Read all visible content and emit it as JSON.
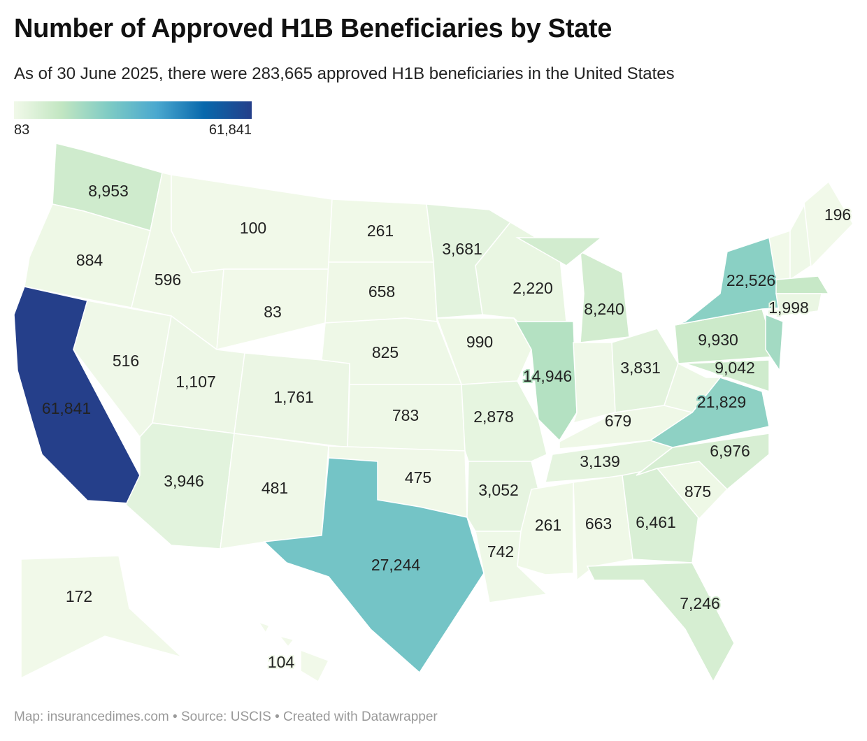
{
  "title": "Number of Approved H1B Beneficiaries by State",
  "subtitle": "As of 30 June 2025, there were 283,665 approved H1B beneficiaries in the United States",
  "legend": {
    "min_label": "83",
    "max_label": "61,841",
    "min": 83,
    "max": 61841,
    "colors": [
      "#f1f9e9",
      "#c2e6c2",
      "#7ecbc4",
      "#4aa8cf",
      "#0868ac",
      "#253f8a"
    ]
  },
  "footer": "Map: insurancedimes.com • Source: USCIS • Created with Datawrapper",
  "chart_data": {
    "type": "choropleth",
    "regions": [
      {
        "state": "WA",
        "value": 8953,
        "label": "8,953"
      },
      {
        "state": "OR",
        "value": 884,
        "label": "884"
      },
      {
        "state": "CA",
        "value": 61841,
        "label": "61,841"
      },
      {
        "state": "NV",
        "value": 516,
        "label": "516"
      },
      {
        "state": "ID",
        "value": 596,
        "label": "596"
      },
      {
        "state": "MT",
        "value": 100,
        "label": "100"
      },
      {
        "state": "WY",
        "value": 83,
        "label": "83"
      },
      {
        "state": "UT",
        "value": 1107,
        "label": "1,107"
      },
      {
        "state": "CO",
        "value": 1761,
        "label": "1,761"
      },
      {
        "state": "AZ",
        "value": 3946,
        "label": "3,946"
      },
      {
        "state": "NM",
        "value": 481,
        "label": "481"
      },
      {
        "state": "ND",
        "value": 261,
        "label": "261"
      },
      {
        "state": "SD",
        "value": 658,
        "label": "658"
      },
      {
        "state": "NE",
        "value": 825,
        "label": "825"
      },
      {
        "state": "KS",
        "value": 783,
        "label": "783"
      },
      {
        "state": "OK",
        "value": 475,
        "label": "475"
      },
      {
        "state": "TX",
        "value": 27244,
        "label": "27,244"
      },
      {
        "state": "MN",
        "value": 3681,
        "label": "3,681"
      },
      {
        "state": "IA",
        "value": 990,
        "label": "990"
      },
      {
        "state": "MO",
        "value": 2878,
        "label": "2,878"
      },
      {
        "state": "AR",
        "value": 3052,
        "label": "3,052"
      },
      {
        "state": "LA",
        "value": 742,
        "label": "742"
      },
      {
        "state": "WI",
        "value": 2220,
        "label": "2,220"
      },
      {
        "state": "IL",
        "value": 14946,
        "label": "14,946"
      },
      {
        "state": "MI",
        "value": 8240,
        "label": "8,240"
      },
      {
        "state": "OH",
        "value": 3831,
        "label": "3,831"
      },
      {
        "state": "KY",
        "value": 679,
        "label": "679"
      },
      {
        "state": "TN",
        "value": 3139,
        "label": "3,139"
      },
      {
        "state": "MS",
        "value": 261,
        "label": "261"
      },
      {
        "state": "AL",
        "value": 663,
        "label": "663"
      },
      {
        "state": "GA",
        "value": 6461,
        "label": "6,461"
      },
      {
        "state": "FL",
        "value": 7246,
        "label": "7,246"
      },
      {
        "state": "SC",
        "value": 875,
        "label": "875"
      },
      {
        "state": "NC",
        "value": 6976,
        "label": "6,976"
      },
      {
        "state": "VA",
        "value": 21829,
        "label": "21,829"
      },
      {
        "state": "PA",
        "value": 9930,
        "label": "9,930"
      },
      {
        "state": "MD",
        "value": 9042,
        "label": "9,042"
      },
      {
        "state": "NY",
        "value": 22526,
        "label": "22,526"
      },
      {
        "state": "CT",
        "value": 1998,
        "label": "1,998"
      },
      {
        "state": "ME",
        "value": 196,
        "label": "196"
      },
      {
        "state": "AK",
        "value": 172,
        "label": "172"
      },
      {
        "state": "HI",
        "value": 104,
        "label": "104"
      }
    ]
  }
}
